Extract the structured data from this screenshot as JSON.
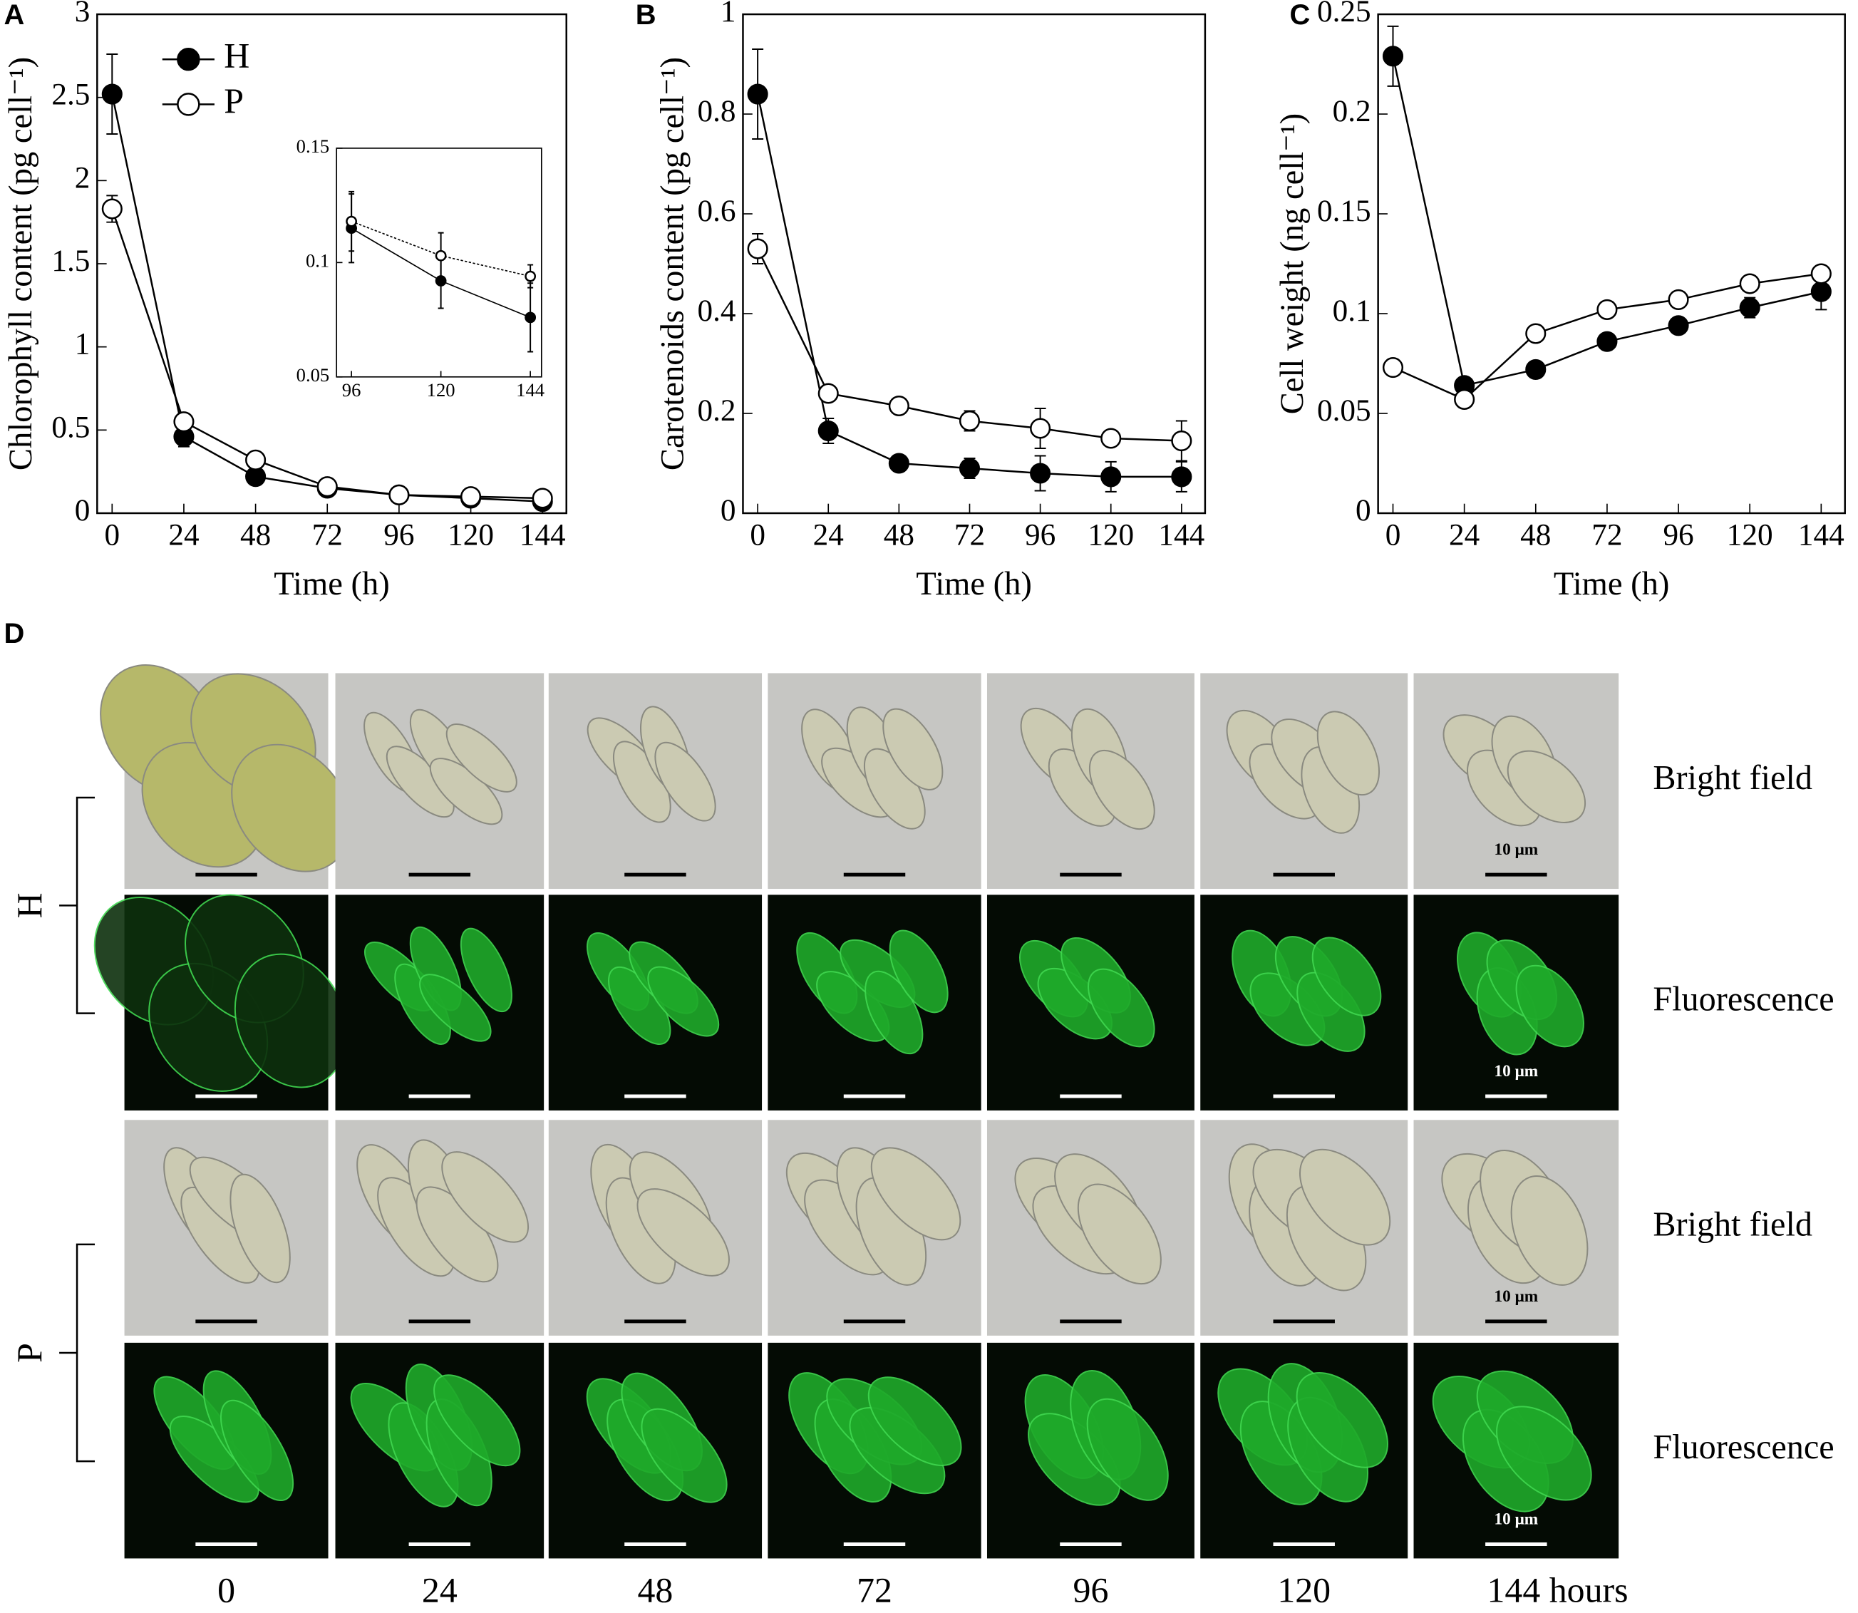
{
  "chart_data": [
    {
      "type": "line",
      "panel": "A",
      "y_label": "Chlorophyll content (pg cell⁻¹)",
      "x_label": "Time (h)",
      "x": [
        0,
        24,
        48,
        72,
        96,
        120,
        144
      ],
      "xlim": [
        -5,
        152
      ],
      "xticks": [
        0,
        24,
        48,
        72,
        96,
        120,
        144
      ],
      "ylim": [
        0,
        3
      ],
      "yticks": [
        0,
        0.5,
        1,
        1.5,
        2,
        2.5,
        3
      ],
      "legend": "upper left",
      "series": [
        {
          "name": "H",
          "color": "#000000",
          "values": [
            2.52,
            0.46,
            0.22,
            0.15,
            0.11,
            0.09,
            0.07
          ],
          "error": [
            0.24,
            0.06,
            0.04,
            0.02,
            0.02,
            0.02,
            0.02
          ]
        },
        {
          "name": "P",
          "color": "#ffffff",
          "values": [
            1.83,
            0.55,
            0.32,
            0.16,
            0.11,
            0.1,
            0.09
          ],
          "error": [
            0.08,
            0.03,
            0.04,
            0.02,
            0.02,
            0.02,
            0.02
          ]
        }
      ],
      "inset": {
        "type": "line",
        "x": [
          96,
          120,
          144
        ],
        "xlim": [
          92,
          147
        ],
        "xticks": [
          96,
          120,
          144
        ],
        "ylim": [
          0.05,
          0.15
        ],
        "yticks": [
          0.05,
          0.1,
          0.15
        ],
        "series": [
          {
            "color": "#000000",
            "values": [
              0.115,
              0.092,
              0.076
            ],
            "error": [
              0.015,
              0.012,
              0.015
            ]
          },
          {
            "color": "#ffffff",
            "values": [
              0.118,
              0.103,
              0.094
            ],
            "error": [
              0.013,
              0.01,
              0.005
            ]
          }
        ]
      }
    },
    {
      "type": "line",
      "panel": "B",
      "y_label": "Carotenoids content (pg cell⁻¹)",
      "x_label": "Time (h)",
      "x": [
        0,
        24,
        48,
        72,
        96,
        120,
        144
      ],
      "xlim": [
        -5,
        152
      ],
      "xticks": [
        0,
        24,
        48,
        72,
        96,
        120,
        144
      ],
      "ylim": [
        0,
        1
      ],
      "yticks": [
        0,
        0.2,
        0.4,
        0.6,
        0.8,
        1
      ],
      "series": [
        {
          "color": "#000000",
          "values": [
            0.84,
            0.165,
            0.1,
            0.09,
            0.08,
            0.073,
            0.073
          ],
          "error": [
            0.09,
            0.025,
            0.01,
            0.02,
            0.035,
            0.03,
            0.03
          ]
        },
        {
          "color": "#ffffff",
          "values": [
            0.53,
            0.24,
            0.215,
            0.185,
            0.17,
            0.15,
            0.145
          ],
          "error": [
            0.03,
            0.01,
            0.015,
            0.02,
            0.04,
            0.01,
            0.04
          ]
        }
      ]
    },
    {
      "type": "line",
      "panel": "C",
      "y_label": "Cell weight (ng cell⁻¹)",
      "x_label": "Time (h)",
      "x": [
        0,
        24,
        48,
        72,
        96,
        120,
        144
      ],
      "xlim": [
        -5,
        152
      ],
      "xticks": [
        0,
        24,
        48,
        72,
        96,
        120,
        144
      ],
      "ylim": [
        0,
        0.25
      ],
      "yticks": [
        0,
        0.05,
        0.1,
        0.15,
        0.2,
        0.25
      ],
      "series": [
        {
          "color": "#000000",
          "values": [
            0.229,
            0.064,
            0.072,
            0.086,
            0.094,
            0.103,
            0.111
          ],
          "error": [
            0.015,
            0.004,
            0.003,
            0.004,
            0.003,
            0.005,
            0.009
          ]
        },
        {
          "color": "#ffffff",
          "values": [
            0.073,
            0.057,
            0.09,
            0.102,
            0.107,
            0.115,
            0.12
          ],
          "error": [
            0.003,
            0.004,
            0.002,
            0.003,
            0.003,
            0.002,
            0.002
          ]
        }
      ]
    }
  ],
  "panel_d": {
    "label": "D",
    "groups": [
      {
        "name": "H",
        "rows": [
          "Bright field",
          "Fluorescence"
        ]
      },
      {
        "name": "P",
        "rows": [
          "Bright field",
          "Fluorescence"
        ]
      }
    ],
    "columns": [
      "0",
      "24",
      "48",
      "72",
      "96",
      "120",
      "144 hours"
    ],
    "scale_bar": "10 μm"
  }
}
